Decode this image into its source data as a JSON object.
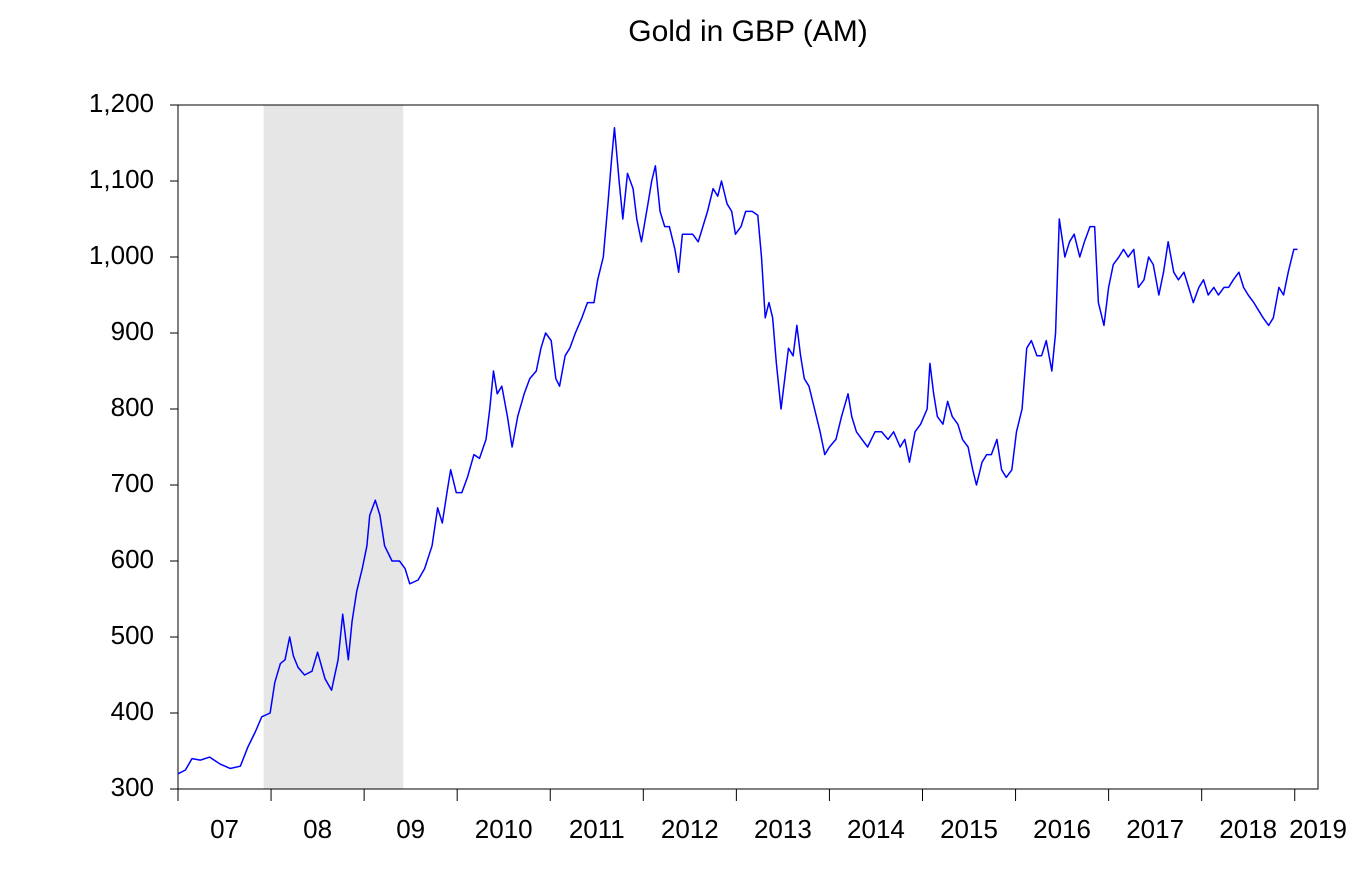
{
  "chart_data": {
    "type": "line",
    "title": "Gold in GBP (AM)",
    "color": "#0000ff",
    "shade_color": "#e6e6e6",
    "shade": [
      2007.92,
      2009.42
    ],
    "xlim": [
      2007,
      2019.25
    ],
    "ylim": [
      300,
      1200
    ],
    "xticks": [
      {
        "value": 2007,
        "label": "07"
      },
      {
        "value": 2008,
        "label": "08"
      },
      {
        "value": 2009,
        "label": "09"
      },
      2010,
      2011,
      2012,
      2013,
      2014,
      2015,
      2016,
      2017,
      2018,
      2019
    ],
    "yticks": [
      300,
      400,
      500,
      600,
      700,
      800,
      900,
      {
        "value": 1000,
        "label": "1,000"
      },
      {
        "value": 1100,
        "label": "1,100"
      },
      {
        "value": 1200,
        "label": "1,200"
      }
    ],
    "x": [
      2007.0,
      2007.08,
      2007.15,
      2007.24,
      2007.34,
      2007.45,
      2007.56,
      2007.67,
      2007.75,
      2007.83,
      2007.9,
      2007.99,
      2008.04,
      2008.1,
      2008.15,
      2008.2,
      2008.24,
      2008.29,
      2008.36,
      2008.44,
      2008.5,
      2008.58,
      2008.65,
      2008.72,
      2008.77,
      2008.83,
      2008.87,
      2008.92,
      2008.98,
      2009.03,
      2009.06,
      2009.12,
      2009.17,
      2009.22,
      2009.3,
      2009.38,
      2009.44,
      2009.49,
      2009.58,
      2009.65,
      2009.73,
      2009.79,
      2009.84,
      2009.89,
      2009.93,
      2009.99,
      2010.05,
      2010.11,
      2010.18,
      2010.24,
      2010.31,
      2010.35,
      2010.39,
      2010.43,
      2010.48,
      2010.54,
      2010.59,
      2010.65,
      2010.72,
      2010.78,
      2010.85,
      2010.9,
      2010.95,
      2011.01,
      2011.06,
      2011.1,
      2011.16,
      2011.21,
      2011.27,
      2011.34,
      2011.4,
      2011.47,
      2011.51,
      2011.57,
      2011.62,
      2011.66,
      2011.69,
      2011.74,
      2011.78,
      2011.83,
      2011.89,
      2011.93,
      2011.98,
      2012.05,
      2012.09,
      2012.13,
      2012.18,
      2012.23,
      2012.28,
      2012.34,
      2012.38,
      2012.42,
      2012.48,
      2012.53,
      2012.59,
      2012.64,
      2012.69,
      2012.75,
      2012.8,
      2012.84,
      2012.9,
      2012.95,
      2012.99,
      2013.05,
      2013.1,
      2013.17,
      2013.23,
      2013.27,
      2013.31,
      2013.35,
      2013.39,
      2013.43,
      2013.48,
      2013.52,
      2013.56,
      2013.61,
      2013.65,
      2013.69,
      2013.73,
      2013.78,
      2013.84,
      2013.9,
      2013.95,
      2014.0,
      2014.07,
      2014.13,
      2014.2,
      2014.24,
      2014.29,
      2014.35,
      2014.41,
      2014.49,
      2014.56,
      2014.63,
      2014.69,
      2014.76,
      2014.81,
      2014.86,
      2014.92,
      2014.98,
      2015.05,
      2015.08,
      2015.12,
      2015.16,
      2015.22,
      2015.27,
      2015.32,
      2015.38,
      2015.43,
      2015.49,
      2015.54,
      2015.58,
      2015.64,
      2015.69,
      2015.74,
      2015.8,
      2015.85,
      2015.9,
      2015.96,
      2016.01,
      2016.07,
      2016.12,
      2016.17,
      2016.23,
      2016.28,
      2016.33,
      2016.39,
      2016.43,
      2016.47,
      2016.53,
      2016.58,
      2016.63,
      2016.69,
      2016.74,
      2016.8,
      2016.85,
      2016.89,
      2016.95,
      2017.0,
      2017.05,
      2017.11,
      2017.16,
      2017.21,
      2017.27,
      2017.32,
      2017.38,
      2017.43,
      2017.48,
      2017.54,
      2017.59,
      2017.64,
      2017.7,
      2017.75,
      2017.81,
      2017.86,
      2017.91,
      2017.97,
      2018.02,
      2018.07,
      2018.13,
      2018.18,
      2018.24,
      2018.29,
      2018.34,
      2018.4,
      2018.45,
      2018.5,
      2018.56,
      2018.61,
      2018.66,
      2018.72,
      2018.77,
      2018.83,
      2018.88,
      2018.93,
      2018.99,
      2019.03
    ],
    "values": [
      320,
      325,
      340,
      338,
      342,
      333,
      327,
      330,
      355,
      375,
      395,
      400,
      440,
      465,
      470,
      500,
      475,
      460,
      450,
      455,
      480,
      445,
      430,
      470,
      530,
      470,
      520,
      560,
      590,
      620,
      660,
      680,
      660,
      620,
      600,
      600,
      590,
      570,
      575,
      590,
      620,
      670,
      650,
      690,
      720,
      690,
      690,
      710,
      740,
      735,
      760,
      800,
      850,
      820,
      830,
      790,
      750,
      790,
      820,
      840,
      850,
      880,
      900,
      890,
      840,
      830,
      870,
      880,
      900,
      920,
      940,
      940,
      970,
      1000,
      1070,
      1130,
      1170,
      1100,
      1050,
      1110,
      1090,
      1050,
      1020,
      1070,
      1100,
      1120,
      1060,
      1040,
      1040,
      1010,
      980,
      1030,
      1030,
      1030,
      1020,
      1040,
      1060,
      1090,
      1080,
      1100,
      1070,
      1060,
      1030,
      1040,
      1060,
      1060,
      1055,
      1000,
      920,
      940,
      920,
      860,
      800,
      840,
      880,
      870,
      910,
      870,
      840,
      830,
      800,
      770,
      740,
      750,
      760,
      790,
      820,
      790,
      770,
      760,
      750,
      770,
      770,
      760,
      770,
      750,
      760,
      730,
      770,
      780,
      800,
      860,
      820,
      790,
      780,
      810,
      790,
      780,
      760,
      750,
      720,
      700,
      730,
      740,
      740,
      760,
      720,
      710,
      720,
      770,
      800,
      880,
      890,
      870,
      870,
      890,
      850,
      900,
      1050,
      1000,
      1020,
      1030,
      1000,
      1020,
      1040,
      1040,
      940,
      910,
      960,
      990,
      1000,
      1010,
      1000,
      1010,
      960,
      970,
      1000,
      990,
      950,
      980,
      1020,
      980,
      970,
      980,
      960,
      940,
      960,
      970,
      950,
      960,
      950,
      960,
      960,
      970,
      980,
      960,
      950,
      940,
      930,
      920,
      910,
      920,
      960,
      950,
      980,
      1010,
      1010
    ]
  }
}
